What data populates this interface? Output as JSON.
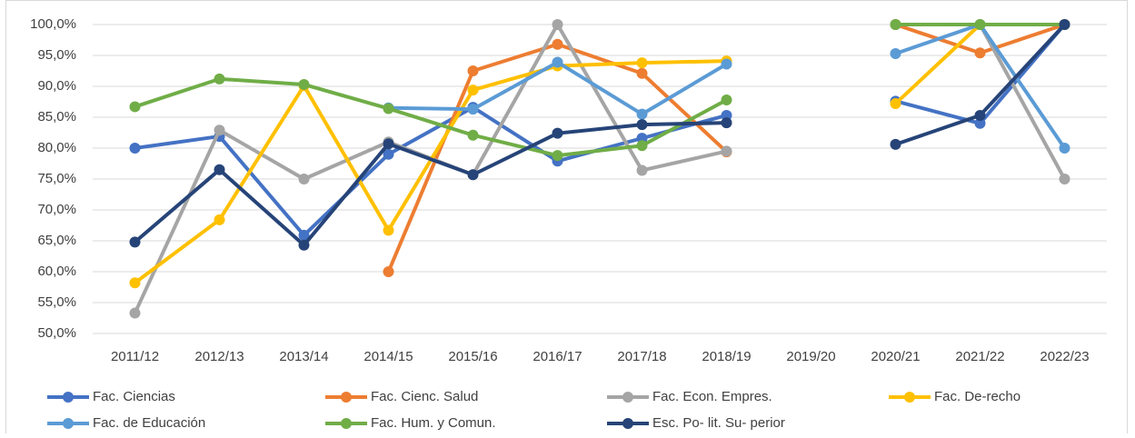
{
  "chart_data": {
    "type": "line",
    "categories": [
      "2011/12",
      "2012/13",
      "2013/14",
      "2014/15",
      "2015/16",
      "2016/17",
      "2017/18",
      "2018/19",
      "2019/20",
      "2020/21",
      "2021/22",
      "2022/23"
    ],
    "series": [
      {
        "name": "Fac. Ciencias",
        "color": "#4472c4",
        "values": [
          80.0,
          81.9,
          65.9,
          79.0,
          86.6,
          77.9,
          81.6,
          85.3,
          null,
          87.6,
          84.0,
          100
        ]
      },
      {
        "name": "Fac. Cienc. Salud",
        "color": "#ed7d31",
        "values": [
          null,
          null,
          null,
          60.0,
          92.5,
          96.8,
          92.1,
          79.4,
          null,
          100,
          95.4,
          100
        ]
      },
      {
        "name": "Fac. Econ. Empres.",
        "color": "#a5a5a5",
        "values": [
          53.3,
          82.9,
          75.0,
          81.0,
          75.7,
          100,
          76.4,
          79.5,
          null,
          100,
          100,
          75.0
        ]
      },
      {
        "name": "Fac. De-recho",
        "color": "#ffc000",
        "values": [
          58.2,
          68.4,
          90.1,
          66.7,
          89.4,
          93.3,
          93.8,
          94.1,
          null,
          87.2,
          100,
          100
        ]
      },
      {
        "name": "Fac. de Educación",
        "color": "#5b9bd5",
        "values": [
          null,
          null,
          null,
          86.5,
          86.3,
          93.9,
          85.5,
          93.6,
          null,
          95.3,
          100,
          80.0
        ]
      },
      {
        "name": "Fac. Hum. y Comun.",
        "color": "#70ad47",
        "values": [
          86.7,
          91.2,
          90.3,
          86.4,
          82.1,
          78.8,
          80.4,
          87.8,
          null,
          100,
          100,
          100
        ]
      },
      {
        "name": "Esc. Po- lit. Su- perior",
        "color": "#264478",
        "values": [
          64.8,
          76.5,
          64.3,
          80.7,
          75.7,
          82.4,
          83.8,
          84.1,
          null,
          80.6,
          85.3,
          100
        ]
      }
    ],
    "ylim": [
      50,
      100
    ],
    "yticks": [
      {
        "value": 50,
        "label": "50,0%"
      },
      {
        "value": 55,
        "label": "55,0%"
      },
      {
        "value": 60,
        "label": "60,0%"
      },
      {
        "value": 65,
        "label": "65,0%"
      },
      {
        "value": 70,
        "label": "70,0%"
      },
      {
        "value": 75,
        "label": "75,0%"
      },
      {
        "value": 80,
        "label": "80,0%"
      },
      {
        "value": 85,
        "label": "85,0%"
      },
      {
        "value": 90,
        "label": "90,0%"
      },
      {
        "value": 95,
        "label": "95,0%"
      },
      {
        "value": 100,
        "label": "100,0%"
      }
    ],
    "grid": true,
    "legend": "bottom"
  }
}
